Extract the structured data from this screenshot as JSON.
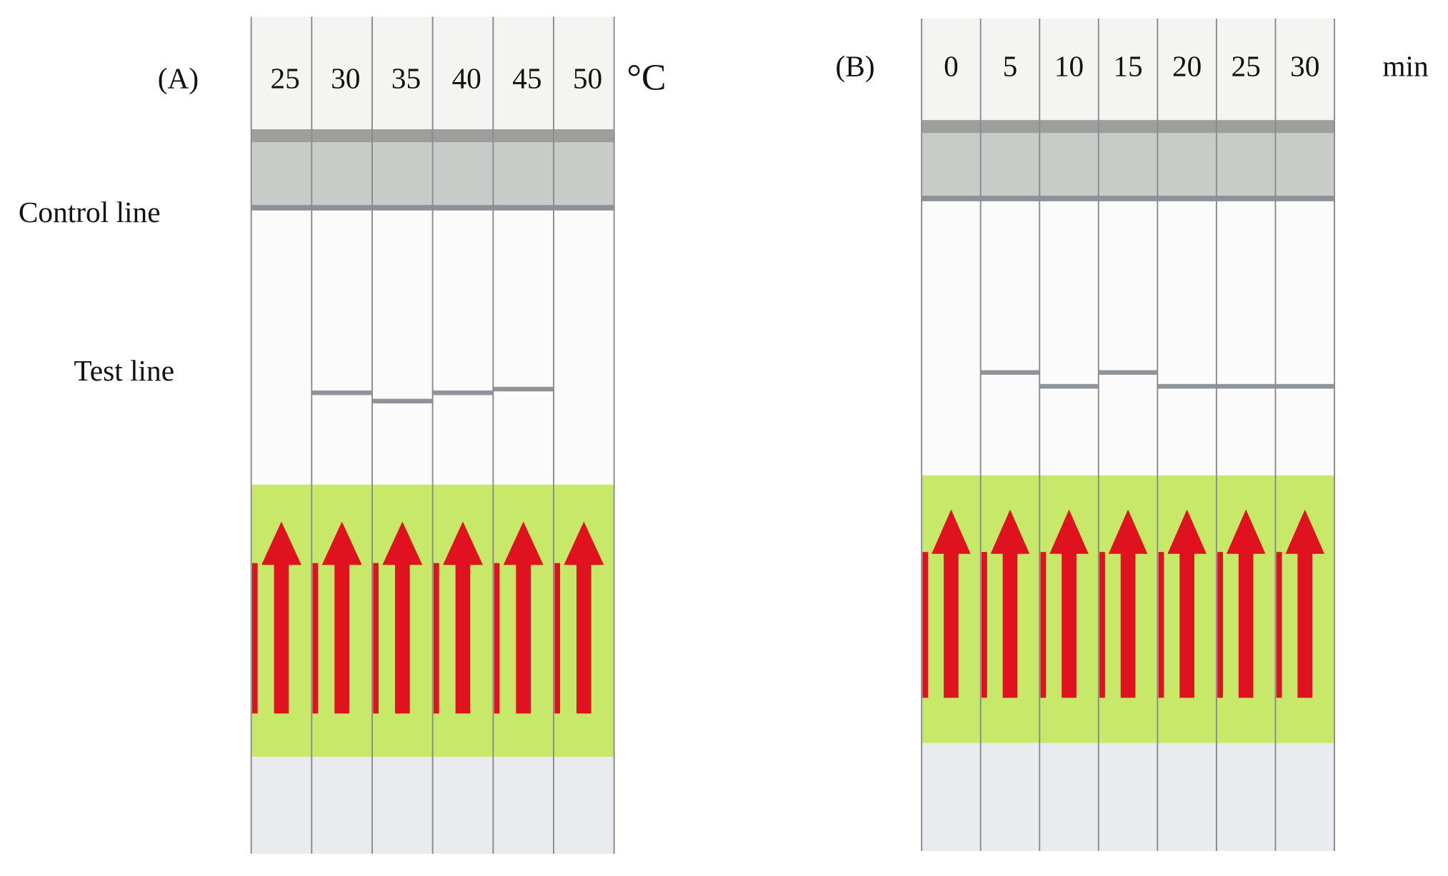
{
  "panels": [
    {
      "label": "(A)",
      "lanes": [
        "25",
        "30",
        "35",
        "40",
        "45",
        "50"
      ],
      "unit": "°C"
    },
    {
      "label": "(B)",
      "lanes": [
        "0",
        "5",
        "10",
        "15",
        "20",
        "25",
        "30"
      ],
      "unit": "min"
    }
  ],
  "row_labels": {
    "control": "Control line",
    "test": "Test line"
  }
}
